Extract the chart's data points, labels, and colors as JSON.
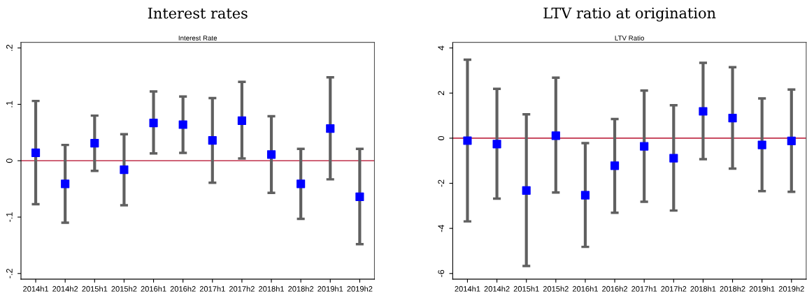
{
  "chart_data": [
    {
      "type": "scatter",
      "title": "Interest rates",
      "subtitle": "Interest Rate",
      "categories": [
        "2014h1",
        "2014h2",
        "2015h1",
        "2015h2",
        "2016h1",
        "2016h2",
        "2017h1",
        "2017h2",
        "2018h1",
        "2018h2",
        "2019h1",
        "2019h2"
      ],
      "series": [
        {
          "color": "#0000ff",
          "values": [
            0.014,
            -0.041,
            0.031,
            -0.016,
            0.067,
            0.064,
            0.036,
            0.071,
            0.011,
            -0.041,
            0.057,
            -0.064
          ],
          "errors": [
            [
              -0.077,
              0.106
            ],
            [
              -0.11,
              0.028
            ],
            [
              -0.018,
              0.08
            ],
            [
              -0.079,
              0.047
            ],
            [
              0.013,
              0.123
            ],
            [
              0.014,
              0.114
            ],
            [
              -0.039,
              0.111
            ],
            [
              0.004,
              0.14
            ],
            [
              -0.057,
              0.079
            ],
            [
              -0.103,
              0.021
            ],
            [
              -0.033,
              0.148
            ],
            [
              -0.148,
              0.021
            ]
          ]
        }
      ],
      "marker": "square",
      "ylim": [
        -0.21,
        0.21
      ],
      "yticks": [
        {
          "value": -0.2,
          "label": "-.2"
        },
        {
          "value": -0.1,
          "label": "-.1"
        },
        {
          "value": 0,
          "label": "0"
        },
        {
          "value": 0.1,
          "label": ".1"
        },
        {
          "value": 0.2,
          "label": ".2"
        }
      ],
      "ref_lines": [
        {
          "axis": "y",
          "value": 0,
          "color": "#c0304a"
        }
      ],
      "grid": false,
      "legend": false
    },
    {
      "type": "scatter",
      "title": "LTV ratio at origination",
      "subtitle": "LTV Ratio",
      "categories": [
        "2014h1",
        "2014h2",
        "2015h1",
        "2015h2",
        "2016h1",
        "2016h2",
        "2017h1",
        "2017h2",
        "2018h1",
        "2018h2",
        "2019h1",
        "2019h2"
      ],
      "series": [
        {
          "color": "#0000ff",
          "values": [
            -0.11,
            -0.26,
            -2.32,
            0.11,
            -2.53,
            -1.22,
            -0.36,
            -0.89,
            1.19,
            0.89,
            -0.3,
            -0.12
          ],
          "errors": [
            [
              -3.69,
              3.48
            ],
            [
              -2.68,
              2.19
            ],
            [
              -5.67,
              1.06
            ],
            [
              -2.41,
              2.68
            ],
            [
              -4.82,
              -0.22
            ],
            [
              -3.31,
              0.85
            ],
            [
              -2.82,
              2.11
            ],
            [
              -3.21,
              1.46
            ],
            [
              -0.93,
              3.34
            ],
            [
              -1.35,
              3.15
            ],
            [
              -2.35,
              1.76
            ],
            [
              -2.38,
              2.16
            ]
          ]
        }
      ],
      "marker": "square",
      "ylim": [
        -6.25,
        4.25
      ],
      "yticks": [
        -6,
        -4,
        -2,
        0,
        2,
        4
      ],
      "ref_lines": [
        {
          "axis": "y",
          "value": 0,
          "color": "#c0304a"
        }
      ],
      "grid": false,
      "legend": false
    }
  ]
}
